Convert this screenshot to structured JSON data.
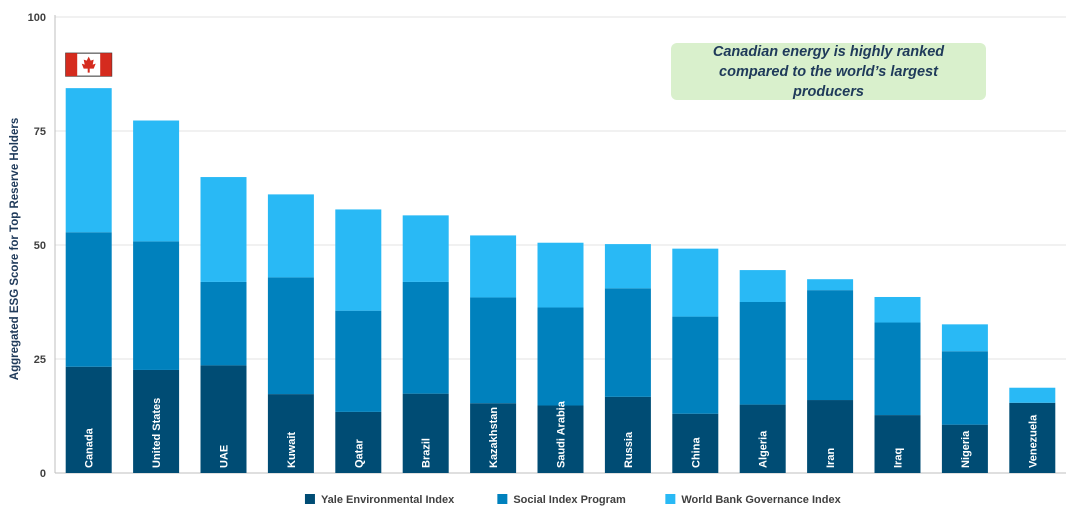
{
  "chart_data": {
    "type": "bar",
    "stacked": true,
    "ylabel": "Aggregated ESG Score for Top Reserve Holders",
    "ylim": [
      0,
      100
    ],
    "yticks": [
      0,
      25,
      50,
      75,
      100
    ],
    "grid": true,
    "legend_position": "bottom-center",
    "categories": [
      "Canada",
      "United States",
      "UAE",
      "Kuwait",
      "Qatar",
      "Brazil",
      "Kazakhstan",
      "Saudi Arabia",
      "Russia",
      "China",
      "Algeria",
      "Iran",
      "Iraq",
      "Nigeria",
      "Venezuela"
    ],
    "series": [
      {
        "name": "Yale Environmental Index",
        "color": "#004c74",
        "values": [
          23.3,
          22.6,
          23.6,
          17.3,
          13.4,
          17.4,
          15.3,
          14.8,
          16.7,
          13.0,
          15.0,
          16.0,
          12.7,
          10.6,
          15.4
        ]
      },
      {
        "name": "Social Index Program",
        "color": "#0081bd",
        "values": [
          29.5,
          28.2,
          18.3,
          25.6,
          22.2,
          24.5,
          23.2,
          21.5,
          23.8,
          21.3,
          22.5,
          24.1,
          20.3,
          16.1,
          0.0
        ]
      },
      {
        "name": "World Bank Governance Index",
        "color": "#29b9f5",
        "values": [
          31.6,
          26.5,
          23.0,
          18.2,
          22.2,
          14.6,
          13.6,
          14.2,
          9.7,
          14.9,
          7.0,
          2.4,
          5.6,
          5.9,
          3.3
        ]
      }
    ],
    "annotation": "Canadian energy is highly ranked compared to the world’s largest producers",
    "highlight": {
      "category": "Canada",
      "icon": "canada-flag-icon"
    }
  }
}
